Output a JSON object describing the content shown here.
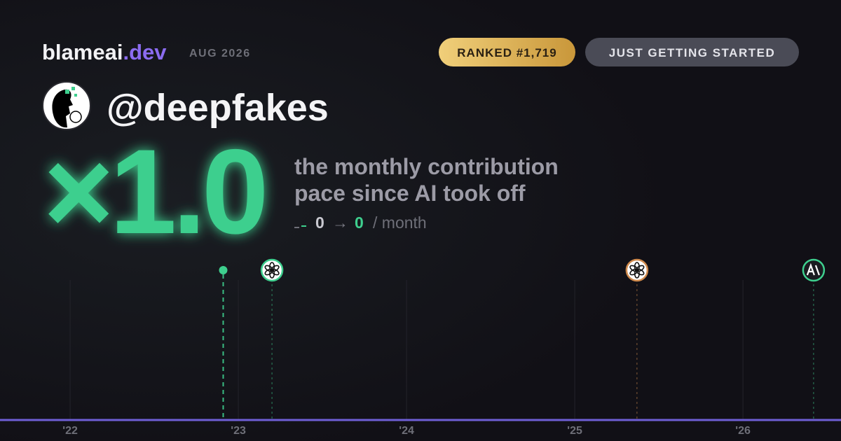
{
  "header": {
    "site": "blameai",
    "site_tld": ".dev",
    "date": "AUG 2026",
    "rank": "RANKED #1,719",
    "status": "JUST GETTING STARTED"
  },
  "profile": {
    "handle": "@deepfakes"
  },
  "stat": {
    "multiplier": "×1.0",
    "description": [
      "the monthly contribution",
      "pace since AI took off"
    ],
    "before": 0,
    "arrow": "→",
    "after": 0,
    "unit": "/ month"
  },
  "timeline": {
    "xlim": [
      2021.583,
      2026.583
    ],
    "xticks": [
      {
        "value": 2022,
        "label": "'22"
      },
      {
        "value": 2023,
        "label": "'23"
      },
      {
        "value": 2024,
        "label": "'24"
      },
      {
        "value": 2025,
        "label": "'25"
      },
      {
        "value": 2026,
        "label": "'26"
      }
    ],
    "events": [
      {
        "x": 2022.91,
        "icon": "dot",
        "color": "#3ecf8e"
      },
      {
        "x": 2023.2,
        "icon": "openai",
        "color": "#3ecf8e"
      },
      {
        "x": 2025.37,
        "icon": "openai",
        "color": "#d08a4c"
      },
      {
        "x": 2026.42,
        "icon": "anthropic",
        "color": "#3ecf8e"
      }
    ]
  }
}
